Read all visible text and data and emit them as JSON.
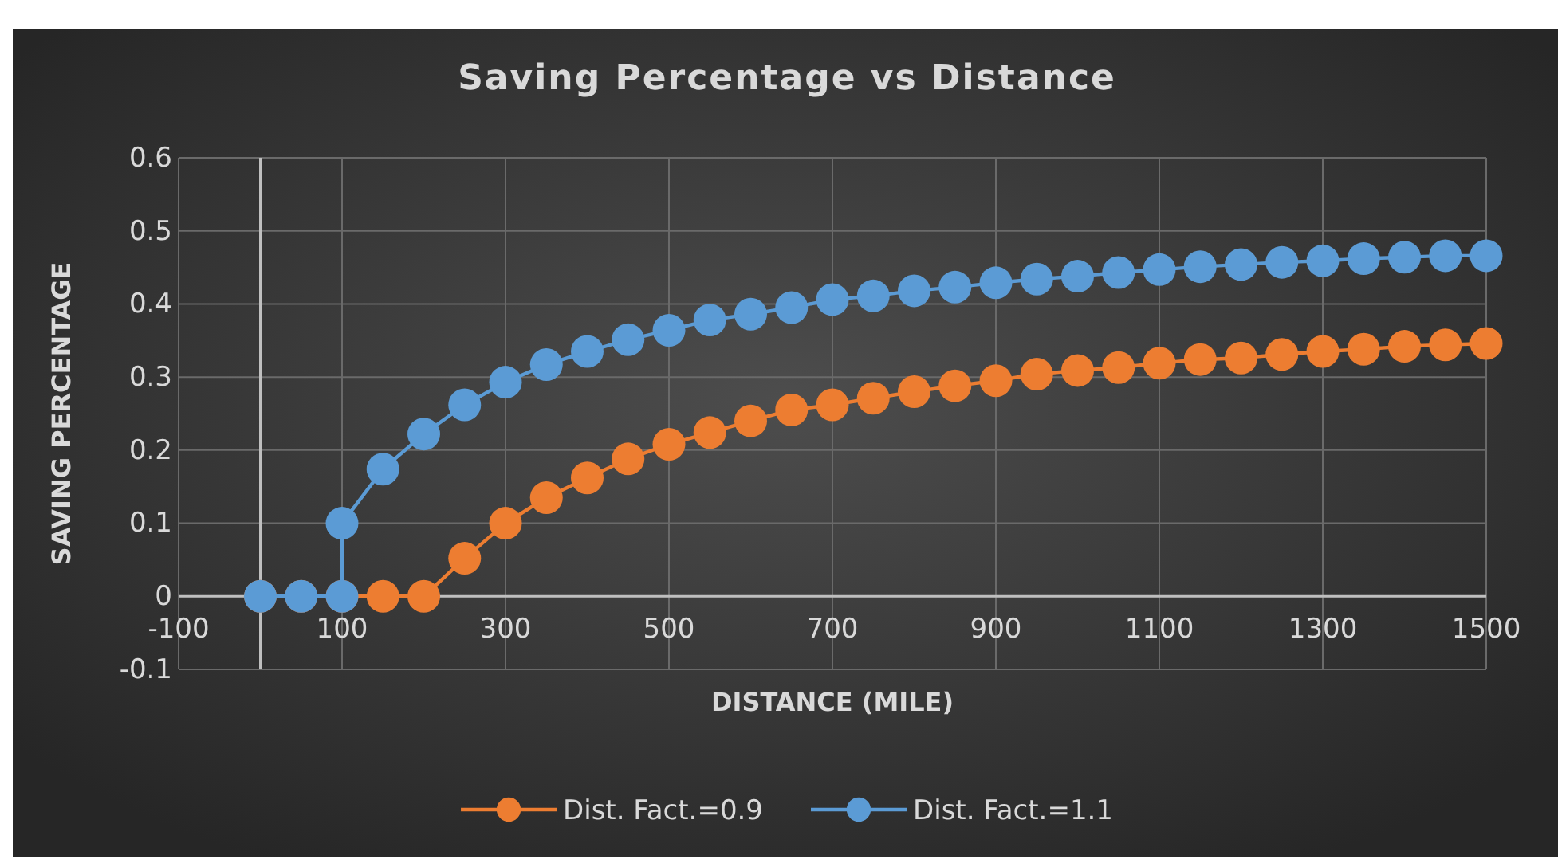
{
  "chart_data": {
    "type": "line",
    "title": "Saving Percentage vs Distance",
    "xlabel": "DISTANCE (MILE)",
    "ylabel": "SAVING PERCENTAGE",
    "xlim": [
      -100,
      1500
    ],
    "xticks": [
      -100,
      100,
      300,
      500,
      700,
      900,
      1100,
      1300,
      1500
    ],
    "ylim": [
      -0.1,
      0.6
    ],
    "yticks": [
      -0.1,
      0,
      0.1,
      0.2,
      0.3,
      0.4,
      0.5,
      0.6
    ],
    "grid": true,
    "legend": "bottom",
    "marker": "circle",
    "line_style": "solid",
    "series": [
      {
        "name": "Dist. Fact.=0.9",
        "color": "#ed7d31",
        "x": [
          0,
          50,
          100,
          150,
          200,
          250,
          300,
          350,
          400,
          450,
          500,
          550,
          600,
          650,
          700,
          750,
          800,
          850,
          900,
          950,
          1000,
          1050,
          1100,
          1150,
          1200,
          1250,
          1300,
          1350,
          1400,
          1450,
          1500
        ],
        "values": [
          0,
          0,
          0,
          0,
          0,
          0.052,
          0.1,
          0.135,
          0.162,
          0.188,
          0.208,
          0.224,
          0.24,
          0.255,
          0.262,
          0.271,
          0.28,
          0.288,
          0.295,
          0.304,
          0.309,
          0.313,
          0.319,
          0.324,
          0.326,
          0.331,
          0.335,
          0.338,
          0.342,
          0.344,
          0.346
        ]
      },
      {
        "name": "Dist. Fact.=1.1",
        "color": "#5b9bd5",
        "x": [
          0,
          50,
          100,
          100,
          150,
          200,
          250,
          300,
          350,
          400,
          450,
          500,
          550,
          600,
          650,
          700,
          750,
          800,
          850,
          900,
          950,
          1000,
          1050,
          1100,
          1150,
          1200,
          1250,
          1300,
          1350,
          1400,
          1450,
          1500
        ],
        "values": [
          0,
          0,
          0,
          0.1,
          0.174,
          0.222,
          0.262,
          0.293,
          0.317,
          0.335,
          0.351,
          0.364,
          0.378,
          0.386,
          0.395,
          0.406,
          0.411,
          0.418,
          0.423,
          0.429,
          0.434,
          0.438,
          0.443,
          0.447,
          0.451,
          0.454,
          0.457,
          0.459,
          0.462,
          0.464,
          0.466,
          0.466
        ]
      }
    ]
  }
}
